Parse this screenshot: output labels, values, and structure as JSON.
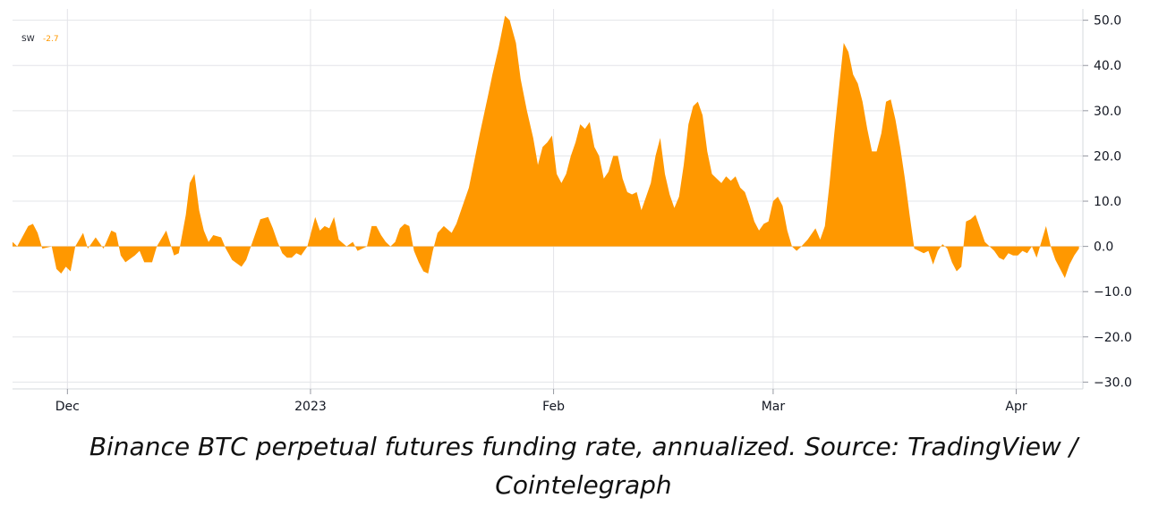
{
  "chart_data": {
    "type": "area",
    "title": "",
    "legend": {
      "symbol": "SW",
      "value": "-2.7"
    },
    "x_tick_labels": [
      "Dec",
      "2023",
      "Feb",
      "Mar",
      "Apr"
    ],
    "x_tick_days": [
      7,
      38,
      69,
      97,
      128
    ],
    "y_ticks": [
      50,
      40,
      30,
      20,
      10,
      0,
      -10,
      -20,
      -30
    ],
    "y_tick_labels": [
      "50.0",
      "40.0",
      "30.0",
      "20.0",
      "10.0",
      "0.0",
      "−10.0",
      "−20.0",
      "−30.0"
    ],
    "ylim": [
      -31.5,
      52.5
    ],
    "xlim": [
      0,
      136.5
    ],
    "xlabel": "",
    "ylabel": "",
    "fill_color": "#ff9800",
    "series": [
      {
        "name": "Binance BTC perpetual funding rate (annualized)",
        "points": [
          [
            0,
            1
          ],
          [
            0.6,
            0
          ],
          [
            2,
            4.5
          ],
          [
            2.6,
            5
          ],
          [
            3.2,
            3
          ],
          [
            3.8,
            -0.5
          ],
          [
            5,
            0
          ],
          [
            5.6,
            -5
          ],
          [
            6.2,
            -6
          ],
          [
            6.8,
            -4.5
          ],
          [
            7.4,
            -5.5
          ],
          [
            8,
            0
          ],
          [
            9,
            3
          ],
          [
            9.6,
            -0.5
          ],
          [
            10.6,
            2
          ],
          [
            11.6,
            -0.5
          ],
          [
            12.6,
            3.5
          ],
          [
            13.2,
            3
          ],
          [
            13.8,
            -2
          ],
          [
            14.4,
            -3.5
          ],
          [
            15.6,
            -2
          ],
          [
            16.2,
            -1
          ],
          [
            16.8,
            -3.5
          ],
          [
            17.8,
            -3.5
          ],
          [
            18.4,
            0
          ],
          [
            19.6,
            3.5
          ],
          [
            20.6,
            -2
          ],
          [
            21.2,
            -1.5
          ],
          [
            22.1,
            7
          ],
          [
            22.6,
            14
          ],
          [
            23.2,
            16
          ],
          [
            23.8,
            8
          ],
          [
            24.4,
            3.5
          ],
          [
            25,
            1
          ],
          [
            25.6,
            2.5
          ],
          [
            26.6,
            2
          ],
          [
            27.2,
            -0.5
          ],
          [
            28,
            -3
          ],
          [
            28.8,
            -4
          ],
          [
            29.2,
            -4.5
          ],
          [
            29.8,
            -3
          ],
          [
            30.4,
            0
          ],
          [
            31.6,
            6
          ],
          [
            32.6,
            6.5
          ],
          [
            33.2,
            4
          ],
          [
            33.8,
            1
          ],
          [
            34.4,
            -1.5
          ],
          [
            35,
            -2.5
          ],
          [
            35.6,
            -2.5
          ],
          [
            36.2,
            -1.5
          ],
          [
            36.8,
            -2
          ],
          [
            37.6,
            0
          ],
          [
            38.6,
            6.5
          ],
          [
            39.2,
            3.5
          ],
          [
            39.8,
            4.5
          ],
          [
            40.4,
            4
          ],
          [
            41,
            6.5
          ],
          [
            41.6,
            1.5
          ],
          [
            42.6,
            0
          ],
          [
            43.4,
            1
          ],
          [
            44,
            -1
          ],
          [
            44.6,
            -0.5
          ],
          [
            45.2,
            0
          ],
          [
            45.8,
            4.5
          ],
          [
            46.4,
            4.5
          ],
          [
            47,
            2.5
          ],
          [
            47.6,
            1
          ],
          [
            48.2,
            0
          ],
          [
            48.8,
            1
          ],
          [
            49.4,
            4
          ],
          [
            50,
            5
          ],
          [
            50.6,
            4.5
          ],
          [
            51.2,
            -1
          ],
          [
            51.8,
            -3.5
          ],
          [
            52.4,
            -5.5
          ],
          [
            53,
            -6
          ],
          [
            53.6,
            -1
          ],
          [
            54.2,
            3
          ],
          [
            55,
            4.5
          ],
          [
            56,
            3
          ],
          [
            56.6,
            5
          ],
          [
            58.2,
            13
          ],
          [
            59.6,
            25
          ],
          [
            60.6,
            33
          ],
          [
            61.2,
            38
          ],
          [
            62,
            44
          ],
          [
            62.8,
            51
          ],
          [
            63.4,
            50
          ],
          [
            64.2,
            45
          ],
          [
            64.8,
            37
          ],
          [
            65.6,
            30
          ],
          [
            66.4,
            24
          ],
          [
            67,
            18
          ],
          [
            67.6,
            22
          ],
          [
            68.2,
            23
          ],
          [
            68.8,
            24.5
          ],
          [
            69.4,
            16
          ],
          [
            70,
            14
          ],
          [
            70.6,
            16
          ],
          [
            71.2,
            20
          ],
          [
            71.8,
            23
          ],
          [
            72.4,
            27
          ],
          [
            73,
            26
          ],
          [
            73.6,
            27.5
          ],
          [
            74.2,
            22
          ],
          [
            74.8,
            20
          ],
          [
            75.4,
            15
          ],
          [
            76,
            16.5
          ],
          [
            76.6,
            20
          ],
          [
            77.2,
            20
          ],
          [
            77.8,
            15
          ],
          [
            78.4,
            12
          ],
          [
            79,
            11.5
          ],
          [
            79.6,
            12
          ],
          [
            80.2,
            8
          ],
          [
            80.8,
            11
          ],
          [
            81.4,
            14
          ],
          [
            82,
            20
          ],
          [
            82.6,
            24
          ],
          [
            83.2,
            16
          ],
          [
            83.8,
            11.5
          ],
          [
            84.4,
            8.5
          ],
          [
            85,
            11
          ],
          [
            85.6,
            18
          ],
          [
            86.2,
            27
          ],
          [
            86.8,
            31
          ],
          [
            87.4,
            32
          ],
          [
            88,
            29
          ],
          [
            88.6,
            21
          ],
          [
            89.2,
            16
          ],
          [
            89.8,
            15
          ],
          [
            90.4,
            14
          ],
          [
            91,
            15.5
          ],
          [
            91.6,
            14.5
          ],
          [
            92.2,
            15.5
          ],
          [
            92.8,
            13
          ],
          [
            93.4,
            12
          ],
          [
            94,
            9
          ],
          [
            94.6,
            5.5
          ],
          [
            95.2,
            3.5
          ],
          [
            95.8,
            5
          ],
          [
            96.4,
            5.5
          ],
          [
            97,
            10
          ],
          [
            97.6,
            11
          ],
          [
            98.2,
            9
          ],
          [
            98.8,
            3.5
          ],
          [
            99.4,
            0
          ],
          [
            100,
            -1
          ],
          [
            100.6,
            0
          ],
          [
            101.4,
            1.5
          ],
          [
            102.4,
            4
          ],
          [
            103,
            1.5
          ],
          [
            103.6,
            4.5
          ],
          [
            104.2,
            14
          ],
          [
            104.8,
            25
          ],
          [
            105.4,
            35
          ],
          [
            106,
            45
          ],
          [
            106.6,
            43
          ],
          [
            107.2,
            38
          ],
          [
            107.8,
            36
          ],
          [
            108.4,
            32
          ],
          [
            109,
            26
          ],
          [
            109.6,
            21
          ],
          [
            110.2,
            21
          ],
          [
            110.8,
            25
          ],
          [
            111.4,
            32
          ],
          [
            112,
            32.5
          ],
          [
            112.6,
            28
          ],
          [
            113.2,
            22
          ],
          [
            113.8,
            15
          ],
          [
            114.4,
            7
          ],
          [
            115,
            -0.5
          ],
          [
            115.6,
            -1
          ],
          [
            116.2,
            -1.5
          ],
          [
            116.8,
            -1
          ],
          [
            117.4,
            -4
          ],
          [
            118,
            -1
          ],
          [
            118.6,
            0.5
          ],
          [
            119.2,
            -0.5
          ],
          [
            119.8,
            -3.5
          ],
          [
            120.4,
            -5.5
          ],
          [
            121,
            -4.5
          ],
          [
            121.6,
            5.5
          ],
          [
            122.2,
            6
          ],
          [
            122.8,
            7
          ],
          [
            123.4,
            4
          ],
          [
            124,
            1
          ],
          [
            124.6,
            0
          ],
          [
            125.2,
            -1
          ],
          [
            125.8,
            -2.5
          ],
          [
            126.4,
            -3
          ],
          [
            127,
            -1.5
          ],
          [
            127.6,
            -2
          ],
          [
            128.2,
            -2
          ],
          [
            128.8,
            -1
          ],
          [
            129.4,
            -1.5
          ],
          [
            130,
            0
          ],
          [
            130.6,
            -2.5
          ],
          [
            131.2,
            1
          ],
          [
            131.8,
            4.5
          ],
          [
            132.4,
            0
          ],
          [
            133,
            -3
          ],
          [
            133.6,
            -5
          ],
          [
            134.2,
            -7
          ],
          [
            134.8,
            -4
          ],
          [
            135.4,
            -2
          ],
          [
            136,
            -0.5
          ]
        ]
      }
    ]
  },
  "caption": {
    "line1": "Binance BTC perpetual futures funding rate, annualized. Source: TradingView /",
    "line2": "Cointelegraph"
  }
}
